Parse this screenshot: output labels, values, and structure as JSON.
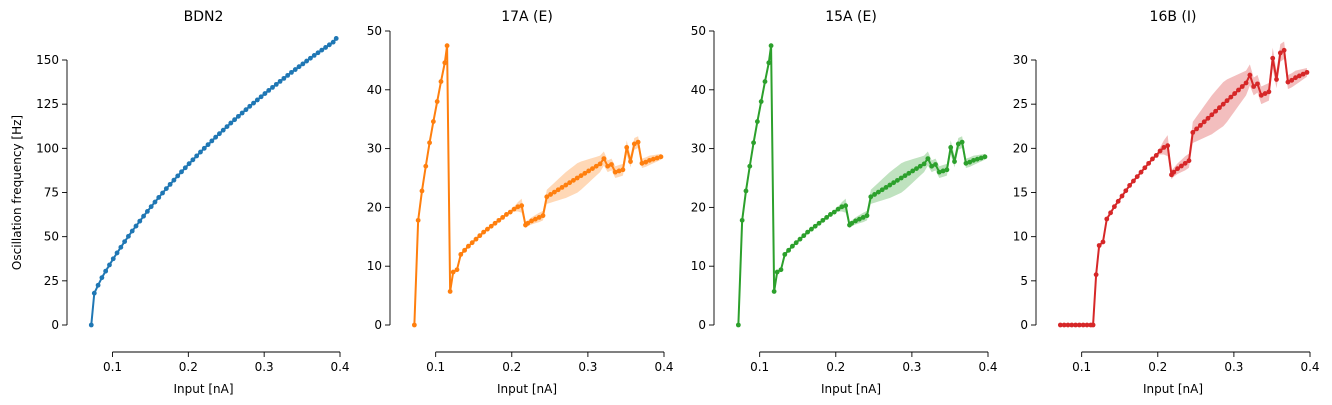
{
  "chart_data": [
    {
      "type": "line",
      "title": "BDN2",
      "xlabel": "Input [nA]",
      "ylabel": "Oscillation frequency [Hz]",
      "xlim": [
        0.04,
        0.4
      ],
      "ylim": [
        -13,
        165
      ],
      "xticks": [
        0.1,
        0.2,
        0.3,
        0.4
      ],
      "yticks": [
        0,
        25,
        50,
        75,
        100,
        125,
        150
      ],
      "color": "#1f77b4",
      "grid": false,
      "series": [
        {
          "x": [
            0.072,
            0.076,
            0.081,
            0.086,
            0.091,
            0.096,
            0.101,
            0.106,
            0.111,
            0.116,
            0.121,
            0.126,
            0.131,
            0.136,
            0.141,
            0.146,
            0.151,
            0.156,
            0.161,
            0.166,
            0.171,
            0.176,
            0.181,
            0.186,
            0.191,
            0.196,
            0.201,
            0.206,
            0.211,
            0.216,
            0.221,
            0.226,
            0.231,
            0.236,
            0.241,
            0.246,
            0.251,
            0.256,
            0.261,
            0.266,
            0.271,
            0.276,
            0.281,
            0.286,
            0.291,
            0.296,
            0.301,
            0.306,
            0.311,
            0.316,
            0.321,
            0.326,
            0.331,
            0.336,
            0.341,
            0.346,
            0.351,
            0.356,
            0.361,
            0.366,
            0.371,
            0.376,
            0.381,
            0.386,
            0.391,
            0.395
          ],
          "y": [
            0,
            18,
            22.5,
            26.8,
            30.5,
            34,
            37.5,
            40.8,
            44,
            47.2,
            50.2,
            53.2,
            56,
            58.8,
            61.6,
            64.3,
            67,
            69.6,
            72.2,
            74.7,
            77.2,
            79.6,
            82,
            84.4,
            86.7,
            89,
            91.3,
            93.5,
            95.7,
            97.9,
            100,
            102.1,
            104.2,
            106.3,
            108.3,
            110.3,
            112.3,
            114.3,
            116.2,
            118.1,
            120,
            121.9,
            123.8,
            125.6,
            127.4,
            129.2,
            131,
            132.8,
            134.5,
            136.2,
            137.9,
            139.6,
            141.3,
            143,
            144.6,
            146.2,
            147.8,
            149.4,
            151,
            152.6,
            154.1,
            155.6,
            157.1,
            158.6,
            160.1,
            162.2
          ],
          "band": [
            0,
            0,
            0,
            0,
            0,
            0,
            0,
            0,
            0,
            0,
            0,
            0,
            0,
            0,
            0,
            0,
            0,
            0,
            0,
            0,
            0,
            0,
            0,
            0,
            0,
            0,
            0,
            0,
            0,
            0,
            0,
            0,
            0,
            0,
            0,
            0,
            0,
            0,
            0,
            0,
            0,
            0,
            0,
            0,
            0,
            0,
            0,
            0,
            0,
            0,
            0,
            0,
            0,
            0,
            0,
            0,
            0,
            0,
            0,
            0,
            0,
            0,
            0,
            0,
            0,
            0
          ]
        }
      ]
    },
    {
      "type": "line",
      "title": "17A (E)",
      "xlabel": "Input [nA]",
      "ylabel": "",
      "xlim": [
        0.04,
        0.4
      ],
      "ylim": [
        -4,
        50
      ],
      "xticks": [
        0.1,
        0.2,
        0.3,
        0.4
      ],
      "yticks": [
        0,
        10,
        20,
        30,
        40,
        50
      ],
      "color": "#ff7f0e",
      "grid": false,
      "series": [
        {
          "x": [
            0.072,
            0.077,
            0.082,
            0.087,
            0.092,
            0.097,
            0.102,
            0.107,
            0.112,
            0.115,
            0.119,
            0.123,
            0.128,
            0.133,
            0.138,
            0.143,
            0.148,
            0.153,
            0.158,
            0.163,
            0.168,
            0.173,
            0.178,
            0.183,
            0.188,
            0.193,
            0.198,
            0.203,
            0.208,
            0.213,
            0.218,
            0.221,
            0.226,
            0.231,
            0.236,
            0.241,
            0.246,
            0.251,
            0.256,
            0.261,
            0.266,
            0.271,
            0.276,
            0.281,
            0.286,
            0.291,
            0.296,
            0.301,
            0.306,
            0.311,
            0.316,
            0.321,
            0.326,
            0.331,
            0.336,
            0.341,
            0.346,
            0.351,
            0.356,
            0.361,
            0.366,
            0.371,
            0.376,
            0.381,
            0.386,
            0.391,
            0.396
          ],
          "y": [
            0,
            17.8,
            22.8,
            27,
            31,
            34.6,
            38,
            41.4,
            44.6,
            47.5,
            5.7,
            9,
            9.4,
            12,
            12.7,
            13.4,
            14,
            14.6,
            15.2,
            15.8,
            16.3,
            16.8,
            17.3,
            17.8,
            18.3,
            18.8,
            19.2,
            19.7,
            20.1,
            20.3,
            17,
            17.3,
            17.7,
            18,
            18.3,
            18.6,
            21.8,
            22.2,
            22.6,
            23,
            23.4,
            23.8,
            24.2,
            24.6,
            25,
            25.4,
            25.8,
            26.2,
            26.6,
            27,
            27.4,
            28.3,
            27,
            27.3,
            26,
            26.2,
            26.4,
            30.2,
            27.8,
            30.8,
            31.1,
            27.5,
            27.7,
            28,
            28.2,
            28.4,
            28.6
          ],
          "band": [
            0,
            0,
            0,
            0,
            0,
            0,
            0,
            0,
            0,
            0,
            0,
            0,
            0,
            0,
            0,
            0,
            0,
            0,
            0,
            0,
            0,
            0,
            0,
            0,
            0,
            0,
            0,
            0.4,
            0.8,
            1.2,
            0.5,
            0.5,
            0.6,
            0.7,
            0.8,
            0.8,
            1.2,
            1.4,
            1.6,
            1.8,
            2,
            2.2,
            2.3,
            2.4,
            2.5,
            2.4,
            2.2,
            2,
            1.8,
            1.6,
            1.4,
            1.2,
            1,
            1,
            1,
            1,
            1,
            1.2,
            1,
            1,
            1,
            0.8,
            0.8,
            0.8,
            0.7,
            0.6,
            0.5
          ]
        }
      ]
    },
    {
      "type": "line",
      "title": "15A (E)",
      "xlabel": "Input [nA]",
      "ylabel": "",
      "xlim": [
        0.04,
        0.4
      ],
      "ylim": [
        -4,
        50
      ],
      "xticks": [
        0.1,
        0.2,
        0.3,
        0.4
      ],
      "yticks": [
        0,
        10,
        20,
        30,
        40,
        50
      ],
      "color": "#2ca02c",
      "grid": false,
      "series": [
        {
          "x": [
            0.072,
            0.077,
            0.082,
            0.087,
            0.092,
            0.097,
            0.102,
            0.107,
            0.112,
            0.115,
            0.119,
            0.123,
            0.128,
            0.133,
            0.138,
            0.143,
            0.148,
            0.153,
            0.158,
            0.163,
            0.168,
            0.173,
            0.178,
            0.183,
            0.188,
            0.193,
            0.198,
            0.203,
            0.208,
            0.213,
            0.218,
            0.221,
            0.226,
            0.231,
            0.236,
            0.241,
            0.246,
            0.251,
            0.256,
            0.261,
            0.266,
            0.271,
            0.276,
            0.281,
            0.286,
            0.291,
            0.296,
            0.301,
            0.306,
            0.311,
            0.316,
            0.321,
            0.326,
            0.331,
            0.336,
            0.341,
            0.346,
            0.351,
            0.356,
            0.361,
            0.366,
            0.371,
            0.376,
            0.381,
            0.386,
            0.391,
            0.396
          ],
          "y": [
            0,
            17.8,
            22.8,
            27,
            31,
            34.6,
            38,
            41.4,
            44.6,
            47.5,
            5.7,
            9,
            9.4,
            12,
            12.7,
            13.4,
            14,
            14.6,
            15.2,
            15.8,
            16.3,
            16.8,
            17.3,
            17.8,
            18.3,
            18.8,
            19.2,
            19.7,
            20.1,
            20.3,
            17,
            17.3,
            17.7,
            18,
            18.3,
            18.6,
            21.8,
            22.2,
            22.6,
            23,
            23.4,
            23.8,
            24.2,
            24.6,
            25,
            25.4,
            25.8,
            26.2,
            26.6,
            27,
            27.4,
            28.3,
            27,
            27.3,
            26,
            26.2,
            26.4,
            30.2,
            27.8,
            30.8,
            31.1,
            27.5,
            27.7,
            28,
            28.2,
            28.4,
            28.6
          ],
          "band": [
            0,
            0,
            0,
            0,
            0,
            0,
            0,
            0,
            0,
            0,
            0,
            0,
            0,
            0,
            0,
            0,
            0,
            0,
            0,
            0,
            0,
            0,
            0,
            0,
            0,
            0,
            0,
            0.4,
            0.8,
            1.2,
            0.5,
            0.5,
            0.6,
            0.7,
            0.8,
            0.8,
            1.2,
            1.4,
            1.6,
            1.8,
            2,
            2.2,
            2.3,
            2.4,
            2.5,
            2.4,
            2.2,
            2,
            1.8,
            1.6,
            1.4,
            1.2,
            1,
            1,
            1,
            1,
            1,
            1.2,
            1,
            1,
            1,
            0.8,
            0.8,
            0.8,
            0.7,
            0.6,
            0.5
          ]
        }
      ]
    },
    {
      "type": "line",
      "title": "16B (I)",
      "xlabel": "Input [nA]",
      "ylabel": "",
      "xlim": [
        0.04,
        0.4
      ],
      "ylim": [
        -2,
        30
      ],
      "xticks": [
        0.1,
        0.2,
        0.3,
        0.4
      ],
      "yticks": [
        0,
        5,
        10,
        15,
        20,
        25,
        30
      ],
      "color": "#d62728",
      "grid": false,
      "series": [
        {
          "x": [
            0.072,
            0.077,
            0.082,
            0.087,
            0.092,
            0.097,
            0.102,
            0.107,
            0.112,
            0.115,
            0.119,
            0.123,
            0.128,
            0.133,
            0.138,
            0.143,
            0.148,
            0.153,
            0.158,
            0.163,
            0.168,
            0.173,
            0.178,
            0.183,
            0.188,
            0.193,
            0.198,
            0.203,
            0.208,
            0.213,
            0.218,
            0.221,
            0.226,
            0.231,
            0.236,
            0.241,
            0.246,
            0.251,
            0.256,
            0.261,
            0.266,
            0.271,
            0.276,
            0.281,
            0.286,
            0.291,
            0.296,
            0.301,
            0.306,
            0.311,
            0.316,
            0.321,
            0.326,
            0.331,
            0.336,
            0.341,
            0.346,
            0.351,
            0.356,
            0.361,
            0.366,
            0.371,
            0.376,
            0.381,
            0.386,
            0.391,
            0.396
          ],
          "y": [
            0,
            0,
            0,
            0,
            0,
            0,
            0,
            0,
            0,
            0,
            5.7,
            9,
            9.4,
            12,
            12.7,
            13.4,
            14,
            14.6,
            15.2,
            15.8,
            16.3,
            16.8,
            17.3,
            17.8,
            18.3,
            18.8,
            19.2,
            19.7,
            20.1,
            20.3,
            17,
            17.3,
            17.7,
            18,
            18.3,
            18.6,
            21.8,
            22.2,
            22.6,
            23,
            23.4,
            23.8,
            24.2,
            24.6,
            25,
            25.4,
            25.8,
            26.2,
            26.6,
            27,
            27.4,
            28.3,
            27,
            27.3,
            26,
            26.2,
            26.4,
            30.2,
            27.8,
            30.8,
            31.1,
            27.5,
            27.7,
            28,
            28.2,
            28.4,
            28.6
          ],
          "band": [
            0,
            0,
            0,
            0,
            0,
            0,
            0,
            0,
            0,
            0,
            0,
            0,
            0,
            0,
            0,
            0,
            0,
            0,
            0,
            0,
            0,
            0,
            0,
            0,
            0,
            0,
            0,
            0.4,
            0.8,
            1.2,
            0.5,
            0.5,
            0.6,
            0.7,
            0.8,
            0.8,
            1.2,
            1.4,
            1.6,
            1.8,
            2,
            2.2,
            2.3,
            2.4,
            2.5,
            2.4,
            2.2,
            2,
            1.8,
            1.6,
            1.4,
            1.2,
            1,
            1,
            1,
            1,
            1,
            1.2,
            1,
            1,
            1,
            0.8,
            0.8,
            0.8,
            0.7,
            0.6,
            0.5
          ]
        }
      ]
    }
  ]
}
